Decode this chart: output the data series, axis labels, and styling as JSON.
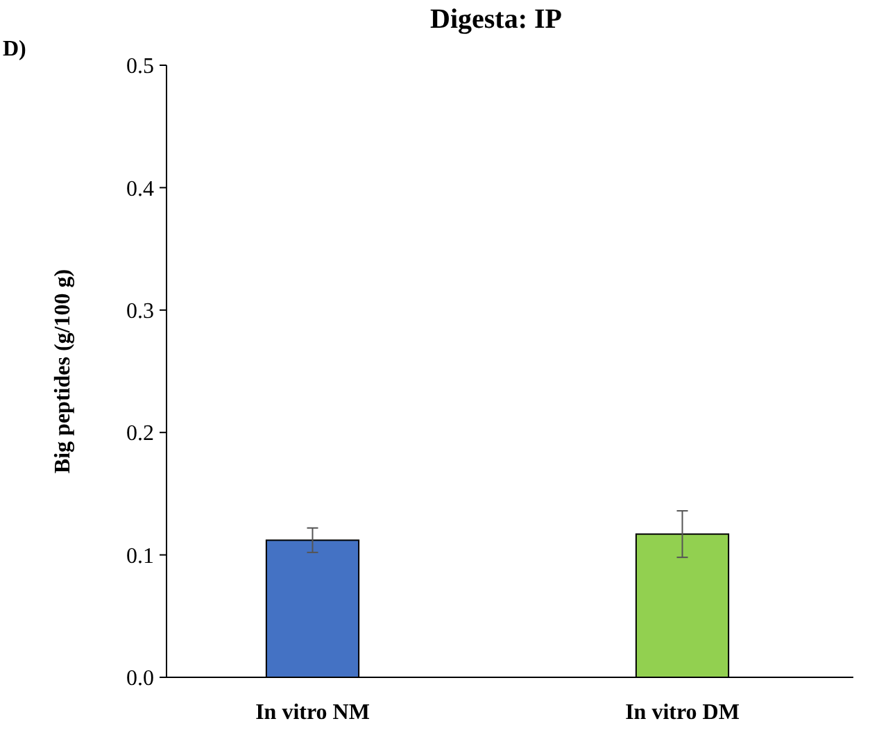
{
  "chart_data": {
    "type": "bar",
    "title": "Digesta: IP",
    "ylabel": "Big peptides (g/100 g)",
    "annotations": [
      "D)"
    ],
    "categories": [
      "In vitro NM",
      "In vitro DM"
    ],
    "values": [
      0.112,
      0.117
    ],
    "colors": [
      "#4472c4",
      "#92d050"
    ],
    "errors": [
      0.01,
      0.019
    ],
    "ylim": [
      0,
      0.5
    ],
    "yticks": [
      {
        "value": 0,
        "label": "0.0"
      },
      0.1,
      0.2,
      0.3,
      0.4,
      0.5
    ],
    "grid": false
  }
}
